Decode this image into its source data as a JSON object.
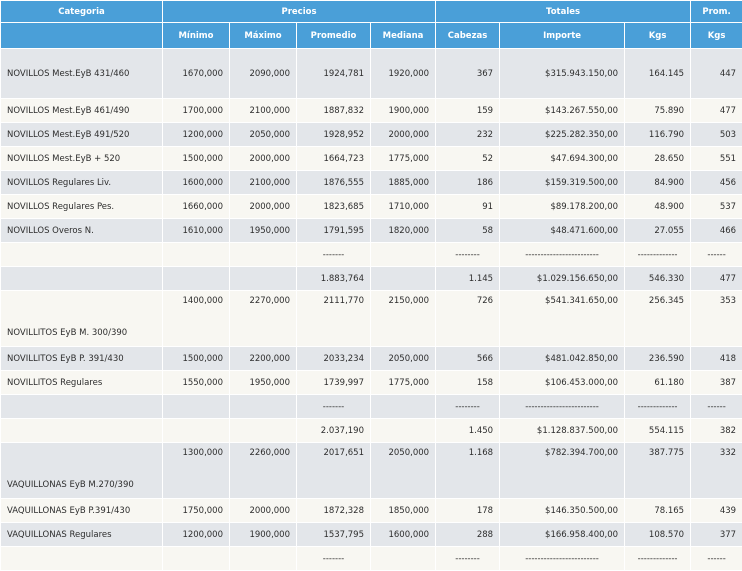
{
  "header": {
    "categoria": "Categoria",
    "precios": "Precios",
    "totales": "Totales",
    "prom": "Prom.",
    "minimo": "Mínimo",
    "maximo": "Máximo",
    "promedio": "Promedio",
    "mediana": "Mediana",
    "cabezas": "Cabezas",
    "importe": "Importe",
    "kgs": "Kgs",
    "kgs_prom": "Kgs"
  },
  "rows": [
    {
      "cat": "NOVILLOS Mest.EyB 431/460",
      "min": "1670,000",
      "max": "2090,000",
      "prom": "1924,781",
      "med": "1920,000",
      "cab": "367",
      "imp": "$315.943.150,00",
      "kgs": "164.145",
      "kgp": "447"
    },
    {
      "cat": "NOVILLOS Mest.EyB 461/490",
      "min": "1700,000",
      "max": "2100,000",
      "prom": "1887,832",
      "med": "1900,000",
      "cab": "159",
      "imp": "$143.267.550,00",
      "kgs": "75.890",
      "kgp": "477"
    },
    {
      "cat": "NOVILLOS Mest.EyB 491/520",
      "min": "1200,000",
      "max": "2050,000",
      "prom": "1928,952",
      "med": "2000,000",
      "cab": "232",
      "imp": "$225.282.350,00",
      "kgs": "116.790",
      "kgp": "503"
    },
    {
      "cat": "NOVILLOS Mest.EyB + 520",
      "min": "1500,000",
      "max": "2000,000",
      "prom": "1664,723",
      "med": "1775,000",
      "cab": "52",
      "imp": "$47.694.300,00",
      "kgs": "28.650",
      "kgp": "551"
    },
    {
      "cat": "NOVILLOS Regulares Liv.",
      "min": "1600,000",
      "max": "2100,000",
      "prom": "1876,555",
      "med": "1885,000",
      "cab": "186",
      "imp": "$159.319.500,00",
      "kgs": "84.900",
      "kgp": "456"
    },
    {
      "cat": "NOVILLOS Regulares Pes.",
      "min": "1660,000",
      "max": "2000,000",
      "prom": "1823,685",
      "med": "1710,000",
      "cab": "91",
      "imp": "$89.178.200,00",
      "kgs": "48.900",
      "kgp": "537"
    },
    {
      "cat": "NOVILLOS Overos N.",
      "min": "1610,000",
      "max": "1950,000",
      "prom": "1791,595",
      "med": "1820,000",
      "cab": "58",
      "imp": "$48.471.600,00",
      "kgs": "27.055",
      "kgp": "466"
    },
    {
      "sep": true,
      "prom": "-------",
      "cab": "--------",
      "imp": "------------------------",
      "kgs": "-------------",
      "kgp": "------"
    },
    {
      "total": true,
      "prom": "1.883,764",
      "cab": "1.145",
      "imp": "$1.029.156.650,00",
      "kgs": "546.330",
      "kgp": "477"
    },
    {
      "cat": "NOVILLITOS EyB M. 300/390",
      "min": "1400,000",
      "max": "2270,000",
      "prom": "2111,770",
      "med": "2150,000",
      "cab": "726",
      "imp": "$541.341.650,00",
      "kgs": "256.345",
      "kgp": "353"
    },
    {
      "cat": "NOVILLITOS EyB P. 391/430",
      "min": "1500,000",
      "max": "2200,000",
      "prom": "2033,234",
      "med": "2050,000",
      "cab": "566",
      "imp": "$481.042.850,00",
      "kgs": "236.590",
      "kgp": "418"
    },
    {
      "cat": "NOVILLITOS Regulares",
      "min": "1550,000",
      "max": "1950,000",
      "prom": "1739,997",
      "med": "1775,000",
      "cab": "158",
      "imp": "$106.453.000,00",
      "kgs": "61.180",
      "kgp": "387"
    },
    {
      "sep": true,
      "prom": "-------",
      "cab": "--------",
      "imp": "------------------------",
      "kgs": "-------------",
      "kgp": "------"
    },
    {
      "total": true,
      "prom": "2.037,190",
      "cab": "1.450",
      "imp": "$1.128.837.500,00",
      "kgs": "554.115",
      "kgp": "382"
    },
    {
      "cat": "VAQUILLONAS EyB M.270/390",
      "min": "1300,000",
      "max": "2260,000",
      "prom": "2017,651",
      "med": "2050,000",
      "cab": "1.168",
      "imp": "$782.394.700,00",
      "kgs": "387.775",
      "kgp": "332"
    },
    {
      "cat": "VAQUILLONAS EyB P.391/430",
      "min": "1750,000",
      "max": "2000,000",
      "prom": "1872,328",
      "med": "1850,000",
      "cab": "178",
      "imp": "$146.350.500,00",
      "kgs": "78.165",
      "kgp": "439"
    },
    {
      "cat": "VAQUILLONAS Regulares",
      "min": "1200,000",
      "max": "1900,000",
      "prom": "1537,795",
      "med": "1600,000",
      "cab": "288",
      "imp": "$166.958.400,00",
      "kgs": "108.570",
      "kgp": "377"
    },
    {
      "sep": true,
      "prom": "-------",
      "cab": "--------",
      "imp": "------------------------",
      "kgs": "-------------",
      "kgp": "------"
    }
  ]
}
